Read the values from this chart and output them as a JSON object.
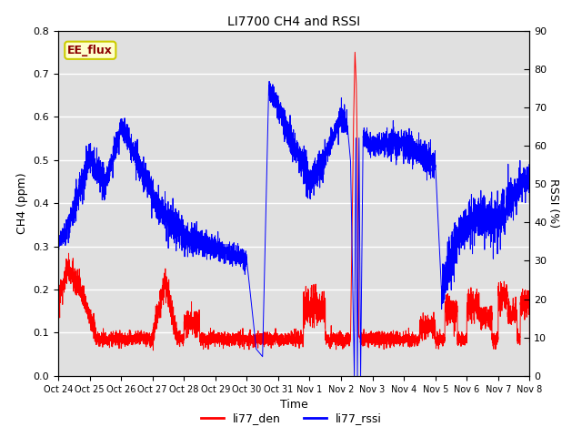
{
  "title": "LI7700 CH4 and RSSI",
  "xlabel": "Time",
  "ylabel_left": "CH4 (ppm)",
  "ylabel_right": "RSSI (%)",
  "legend_labels": [
    "li77_den",
    "li77_rssi"
  ],
  "legend_colors": [
    "red",
    "blue"
  ],
  "annotation_text": "EE_flux",
  "annotation_bg": "#ffffcc",
  "annotation_border": "#cccc00",
  "bg_color": "#e0e0e0",
  "ylim_left": [
    0.0,
    0.8
  ],
  "ylim_right": [
    0,
    90
  ],
  "yticks_left": [
    0.0,
    0.1,
    0.2,
    0.3,
    0.4,
    0.5,
    0.6,
    0.7,
    0.8
  ],
  "yticks_right": [
    0,
    10,
    20,
    30,
    40,
    50,
    60,
    70,
    80,
    90
  ],
  "xtick_labels": [
    "Oct 24",
    "Oct 25",
    "Oct 26",
    "Oct 27",
    "Oct 28",
    "Oct 29",
    "Oct 30",
    "Oct 31",
    "Nov 1",
    "Nov 2",
    "Nov 3",
    "Nov 4",
    "Nov 5",
    "Nov 6",
    "Nov 7",
    "Nov 8"
  ],
  "n_points": 5000
}
